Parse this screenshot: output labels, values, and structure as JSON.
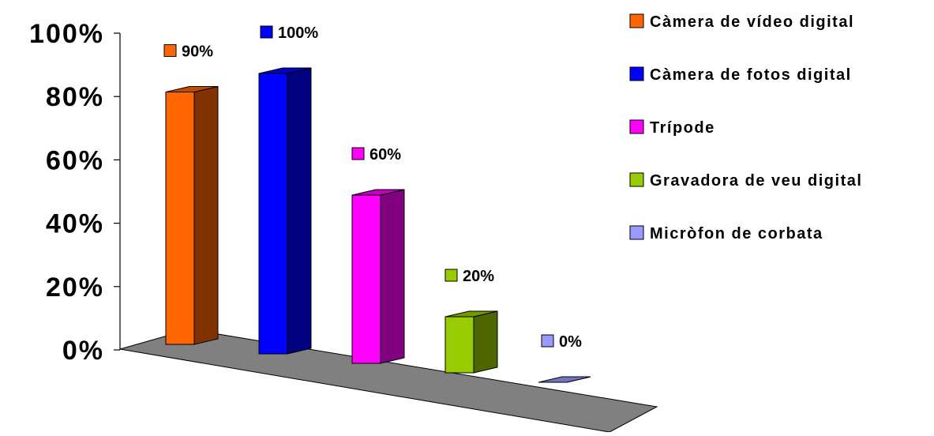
{
  "chart_data": {
    "type": "bar",
    "style": "3d-column",
    "categories": [
      "Càmera de vídeo digital",
      "Càmera de fotos digital",
      "Trípode",
      "Gravadora de veu digital",
      "Micròfon de corbata"
    ],
    "series": [
      {
        "values": [
          90,
          100,
          60,
          20,
          0
        ],
        "data_labels": [
          "90%",
          "100%",
          "60%",
          "20%",
          "0%"
        ]
      }
    ],
    "colors": [
      "#FF6600",
      "#0000FF",
      "#FF00FF",
      "#99CC00",
      "#9999FF"
    ],
    "ylim": [
      0,
      100
    ],
    "yticks": [
      "0%",
      "20%",
      "40%",
      "60%",
      "80%",
      "100%"
    ],
    "legend": "right",
    "floor_color": "#808080",
    "grid": false
  }
}
